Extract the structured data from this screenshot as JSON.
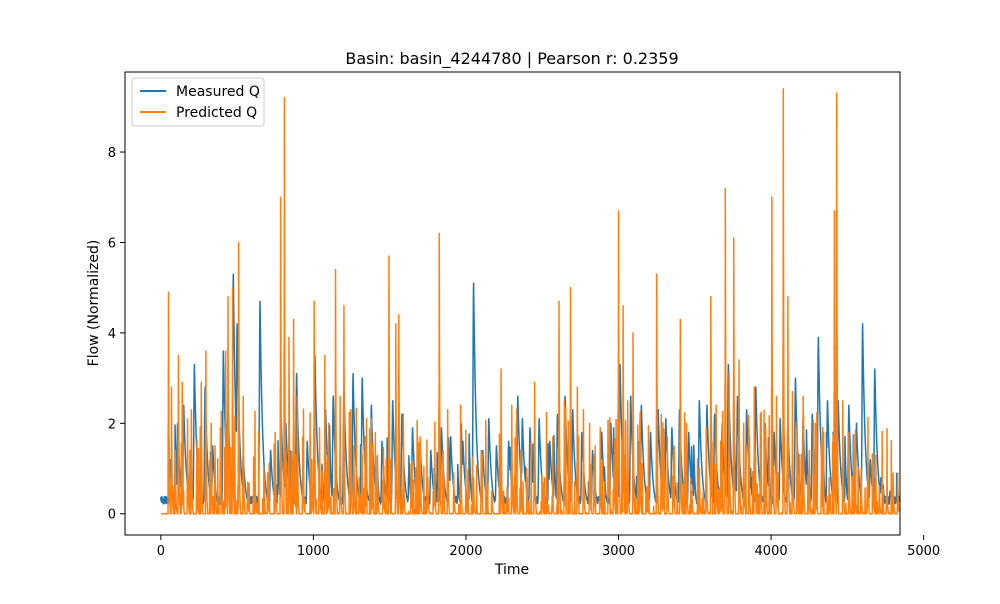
{
  "chart_data": {
    "type": "line",
    "title": "Basin: basin_4244780 | Pearson r: 0.2359",
    "xlabel": "Time",
    "ylabel": "Flow (Normalized)",
    "xlim": [
      -235,
      4845
    ],
    "ylim": [
      -0.47,
      9.77
    ],
    "xticks": [
      0,
      1000,
      2000,
      3000,
      4000,
      5000
    ],
    "xtick_labels": [
      "0",
      "1000",
      "2000",
      "3000",
      "4000",
      "5000"
    ],
    "yticks": [
      0,
      2,
      4,
      6,
      8
    ],
    "ytick_labels": [
      "0",
      "2",
      "4",
      "6",
      "8"
    ],
    "grid": false,
    "legend_position": "upper-left",
    "n_points": 4840,
    "series": [
      {
        "name": "Measured Q",
        "color": "#1f77b4",
        "kind": "measured",
        "base": 0.35,
        "peaks": [
          [
            0,
            0.3
          ],
          [
            60,
            1.2
          ],
          [
            110,
            2.0
          ],
          [
            150,
            2.4
          ],
          [
            220,
            3.3
          ],
          [
            290,
            2.8
          ],
          [
            340,
            1.5
          ],
          [
            410,
            3.6
          ],
          [
            440,
            2.5
          ],
          [
            475,
            5.3
          ],
          [
            500,
            4.2
          ],
          [
            540,
            1.3
          ],
          [
            650,
            4.7
          ],
          [
            720,
            1.4
          ],
          [
            790,
            2.0
          ],
          [
            820,
            2.0
          ],
          [
            890,
            3.1
          ],
          [
            960,
            1.6
          ],
          [
            1010,
            3.5
          ],
          [
            1080,
            2.3
          ],
          [
            1130,
            2.6
          ],
          [
            1200,
            2.8
          ],
          [
            1260,
            3.1
          ],
          [
            1320,
            3.0
          ],
          [
            1380,
            2.4
          ],
          [
            1450,
            1.6
          ],
          [
            1520,
            2.5
          ],
          [
            1580,
            2.2
          ],
          [
            1650,
            1.9
          ],
          [
            1700,
            1.5
          ],
          [
            1770,
            1.4
          ],
          [
            1840,
            1.9
          ],
          [
            1900,
            1.7
          ],
          [
            1980,
            1.6
          ],
          [
            2050,
            5.1
          ],
          [
            2110,
            1.4
          ],
          [
            2150,
            2.1
          ],
          [
            2200,
            1.5
          ],
          [
            2280,
            1.6
          ],
          [
            2340,
            2.6
          ],
          [
            2370,
            2.1
          ],
          [
            2420,
            1.9
          ],
          [
            2480,
            2.1
          ],
          [
            2550,
            1.6
          ],
          [
            2600,
            2.2
          ],
          [
            2650,
            2.6
          ],
          [
            2700,
            2.3
          ],
          [
            2760,
            1.8
          ],
          [
            2830,
            1.4
          ],
          [
            2890,
            1.8
          ],
          [
            2950,
            2.0
          ],
          [
            3010,
            3.3
          ],
          [
            3080,
            2.6
          ],
          [
            3150,
            2.4
          ],
          [
            3210,
            1.8
          ],
          [
            3260,
            2.3
          ],
          [
            3310,
            2.1
          ],
          [
            3350,
            1.9
          ],
          [
            3400,
            2.3
          ],
          [
            3460,
            1.8
          ],
          [
            3530,
            2.5
          ],
          [
            3580,
            2.4
          ],
          [
            3630,
            2.2
          ],
          [
            3680,
            2.0
          ],
          [
            3720,
            3.3
          ],
          [
            3780,
            2.6
          ],
          [
            3840,
            2.3
          ],
          [
            3900,
            2.8
          ],
          [
            3960,
            2.0
          ],
          [
            4020,
            1.8
          ],
          [
            4060,
            2.1
          ],
          [
            4110,
            2.0
          ],
          [
            4160,
            3.0
          ],
          [
            4210,
            2.1
          ],
          [
            4270,
            2.2
          ],
          [
            4310,
            3.9
          ],
          [
            4370,
            2.5
          ],
          [
            4440,
            2.5
          ],
          [
            4510,
            2.4
          ],
          [
            4560,
            2.0
          ],
          [
            4600,
            4.2
          ],
          [
            4650,
            1.2
          ],
          [
            4680,
            3.2
          ],
          [
            4720,
            0.8
          ],
          [
            4780,
            0.5
          ],
          [
            4839,
            0.12
          ]
        ]
      },
      {
        "name": "Predicted Q",
        "color": "#ff7f0e",
        "kind": "predicted",
        "peaks": [
          [
            50,
            4.9
          ],
          [
            70,
            2.8
          ],
          [
            95,
            1.4
          ],
          [
            115,
            3.5
          ],
          [
            140,
            2.9
          ],
          [
            175,
            2.1
          ],
          [
            200,
            2.3
          ],
          [
            235,
            1.2
          ],
          [
            265,
            2.9
          ],
          [
            295,
            3.6
          ],
          [
            330,
            2.0
          ],
          [
            355,
            1.5
          ],
          [
            390,
            1.9
          ],
          [
            425,
            3.6
          ],
          [
            440,
            4.8
          ],
          [
            470,
            5.0
          ],
          [
            510,
            6.0
          ],
          [
            540,
            2.6
          ],
          [
            570,
            0.7
          ],
          [
            620,
            0.4
          ],
          [
            700,
            0.9
          ],
          [
            750,
            1.8
          ],
          [
            785,
            7.0
          ],
          [
            810,
            9.2
          ],
          [
            840,
            3.9
          ],
          [
            870,
            4.3
          ],
          [
            895,
            2.6
          ],
          [
            930,
            1.7
          ],
          [
            990,
            1.2
          ],
          [
            1005,
            4.7
          ],
          [
            1040,
            1.9
          ],
          [
            1075,
            3.5
          ],
          [
            1100,
            2.0
          ],
          [
            1145,
            5.4
          ],
          [
            1175,
            2.6
          ],
          [
            1200,
            4.6
          ],
          [
            1245,
            2.3
          ],
          [
            1265,
            1.5
          ],
          [
            1300,
            0.8
          ],
          [
            1340,
            1.7
          ],
          [
            1380,
            2.1
          ],
          [
            1420,
            1.3
          ],
          [
            1460,
            0.9
          ],
          [
            1495,
            5.7
          ],
          [
            1540,
            4.2
          ],
          [
            1560,
            4.4
          ],
          [
            1590,
            1.9
          ],
          [
            1640,
            1.1
          ],
          [
            1700,
            1.7
          ],
          [
            1750,
            0.8
          ],
          [
            1790,
            1.0
          ],
          [
            1825,
            6.2
          ],
          [
            1850,
            1.4
          ],
          [
            1880,
            2.3
          ],
          [
            1920,
            0.9
          ],
          [
            1965,
            2.4
          ],
          [
            2000,
            0.6
          ],
          [
            2050,
            0.8
          ],
          [
            2100,
            1.4
          ],
          [
            2170,
            0.5
          ],
          [
            2230,
            3.2
          ],
          [
            2270,
            0.6
          ],
          [
            2300,
            2.4
          ],
          [
            2330,
            2.0
          ],
          [
            2360,
            1.4
          ],
          [
            2400,
            0.4
          ],
          [
            2450,
            2.9
          ],
          [
            2500,
            0.6
          ],
          [
            2530,
            0.5
          ],
          [
            2565,
            0.4
          ],
          [
            2610,
            4.7
          ],
          [
            2645,
            2.5
          ],
          [
            2685,
            5.0
          ],
          [
            2730,
            2.8
          ],
          [
            2770,
            2.3
          ],
          [
            2810,
            2.0
          ],
          [
            2840,
            1.3
          ],
          [
            2880,
            1.9
          ],
          [
            2935,
            1.4
          ],
          [
            2970,
            1.3
          ],
          [
            3000,
            6.7
          ],
          [
            3030,
            4.6
          ],
          [
            3060,
            2.5
          ],
          [
            3095,
            4.0
          ],
          [
            3140,
            2.1
          ],
          [
            3185,
            0.6
          ],
          [
            3250,
            5.3
          ],
          [
            3280,
            2.2
          ],
          [
            3320,
            1.7
          ],
          [
            3360,
            1.4
          ],
          [
            3405,
            4.3
          ],
          [
            3445,
            2.0
          ],
          [
            3480,
            0.5
          ],
          [
            3530,
            1.0
          ],
          [
            3575,
            1.9
          ],
          [
            3605,
            4.8
          ],
          [
            3640,
            2.4
          ],
          [
            3670,
            1.6
          ],
          [
            3700,
            7.2
          ],
          [
            3725,
            3.1
          ],
          [
            3755,
            6.1
          ],
          [
            3790,
            3.4
          ],
          [
            3820,
            2.0
          ],
          [
            3855,
            1.9
          ],
          [
            3890,
            2.8
          ],
          [
            3930,
            2.2
          ],
          [
            3965,
            1.9
          ],
          [
            4005,
            7.0
          ],
          [
            4035,
            2.6
          ],
          [
            4080,
            9.4
          ],
          [
            4110,
            4.8
          ],
          [
            4140,
            2.7
          ],
          [
            4170,
            2.0
          ],
          [
            4210,
            2.6
          ],
          [
            4250,
            1.4
          ],
          [
            4290,
            2.0
          ],
          [
            4330,
            1.6
          ],
          [
            4380,
            0.8
          ],
          [
            4415,
            6.7
          ],
          [
            4430,
            9.3
          ],
          [
            4470,
            2.5
          ],
          [
            4510,
            1.8
          ],
          [
            4550,
            1.4
          ],
          [
            4590,
            1.0
          ],
          [
            4630,
            0.6
          ],
          [
            4670,
            0.8
          ],
          [
            4710,
            0.6
          ],
          [
            4760,
            0.7
          ],
          [
            4800,
            0.9
          ],
          [
            4830,
            0.9
          ]
        ]
      }
    ]
  }
}
